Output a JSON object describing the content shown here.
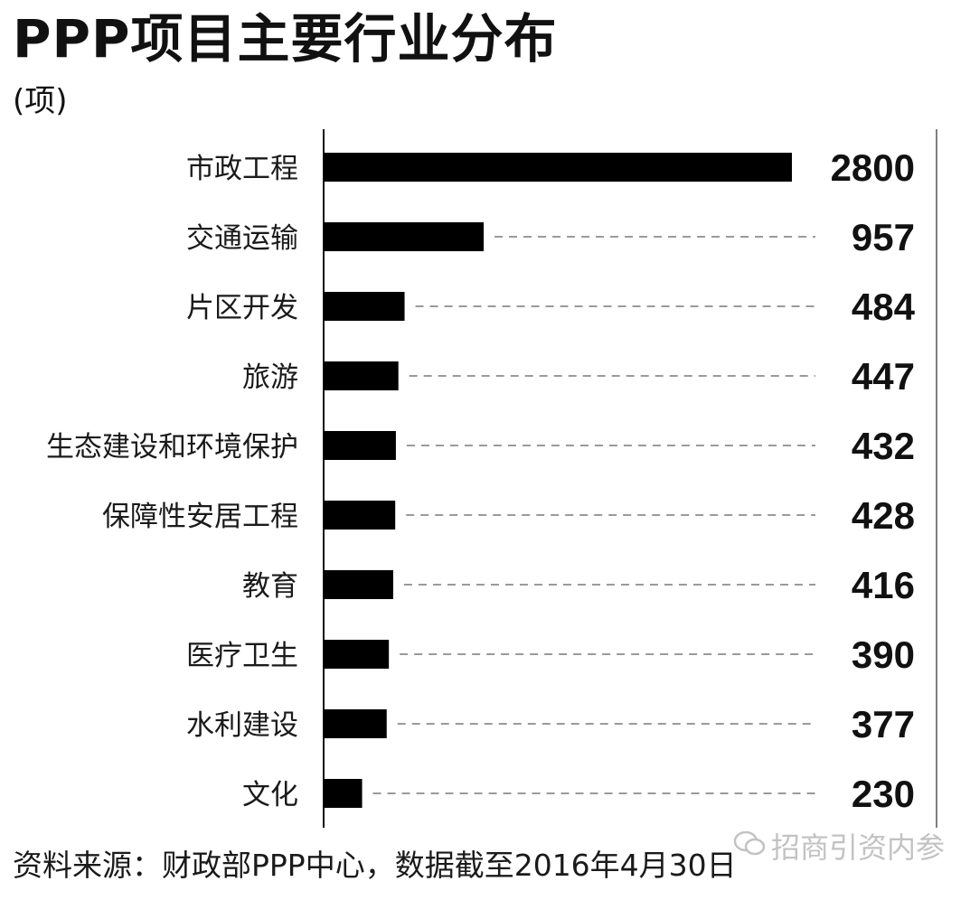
{
  "chart_data": {
    "type": "bar",
    "orientation": "horizontal",
    "title": "PPP项目主要行业分布",
    "subtitle": "(项)",
    "categories": [
      "市政工程",
      "交通运输",
      "片区开发",
      "旅游",
      "生态建设和环境保护",
      "保障性安居工程",
      "教育",
      "医疗卫生",
      "水利建设",
      "文化"
    ],
    "values": [
      2800,
      957,
      484,
      447,
      432,
      428,
      416,
      390,
      377,
      230
    ],
    "value_labels": [
      "2800",
      "957",
      "484",
      "447",
      "432",
      "428",
      "416",
      "390",
      "377",
      "230"
    ],
    "xlim": [
      0,
      2800
    ],
    "bar_color": "#000000",
    "leader_line_color": "#9a9a9a",
    "grid": false,
    "legend": "none"
  },
  "footer": {
    "source": "资料来源：财政部PPP中心，数据截至2016年4月30日",
    "watermark": "招商引资内参",
    "watermark_icon": "wechat-icon"
  }
}
